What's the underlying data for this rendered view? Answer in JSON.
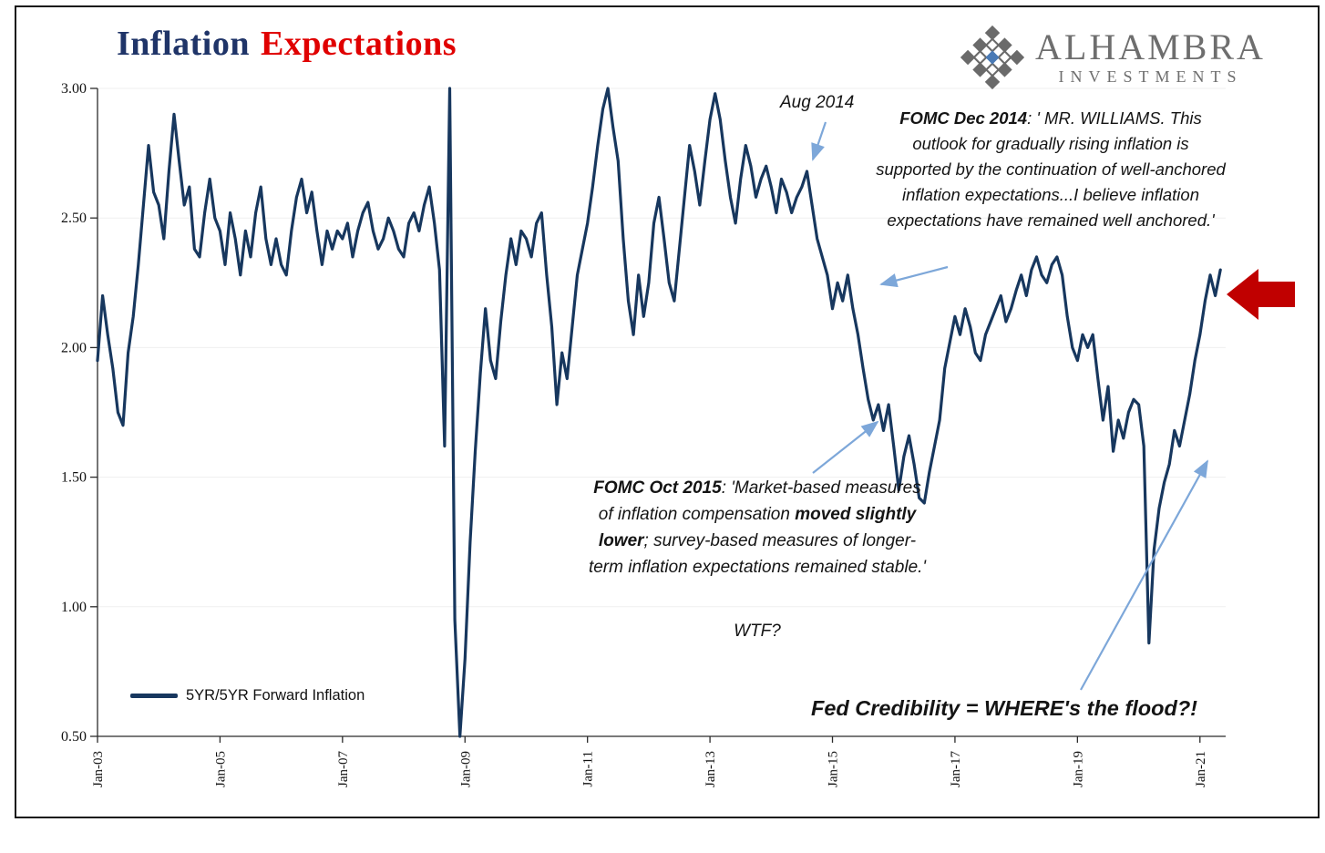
{
  "title": {
    "part1": "Inflation",
    "part2": "Expectations"
  },
  "logo": {
    "name": "ALHAMBRA",
    "subtitle": "INVESTMENTS"
  },
  "legend": {
    "label": "5YR/5YR Forward Inflation"
  },
  "annotations": {
    "aug_2014": {
      "label": "Aug 2014"
    },
    "fomc_dec_2014": {
      "bold": "FOMC Dec 2014",
      "text": ": ' MR. WILLIAMS. This outlook for gradually rising inflation is supported by the continuation of well-anchored inflation expectations...I believe inflation expectations have remained well anchored.'"
    },
    "fomc_oct_2015": {
      "bold": "FOMC Oct 2015",
      "text1": ": 'Market-based measures of inflation compensation ",
      "bold2": "moved slightly lower",
      "text2": "; survey-based measures of longer-term inflation expectations remained stable.'"
    },
    "wtf": {
      "label": "WTF?"
    },
    "fed_credibility": {
      "label": "Fed Credibility = WHERE's the flood?!"
    }
  },
  "colors": {
    "title_navy": "#1f3468",
    "title_red": "#e00000",
    "line_navy": "#17375e",
    "arrow_blue": "#7da7d9",
    "red_arrow": "#c00000",
    "logo_gray": "#6e6e6e",
    "logo_blue": "#4a7ab5"
  },
  "chart_data": {
    "type": "line",
    "title": "Inflation Expectations",
    "xlabel": "",
    "ylabel": "",
    "grid": "light-horizontal",
    "legend_position": "bottom-left",
    "line_color": "#17375e",
    "ylim": [
      0.5,
      3.0
    ],
    "xlim": [
      2003,
      2021.42
    ],
    "yticks": [
      0.5,
      1.0,
      1.5,
      2.0,
      2.5,
      3.0
    ],
    "ytick_labels": [
      "0.50",
      "1.00",
      "1.50",
      "2.00",
      "2.50",
      "3.00"
    ],
    "xtick_years": [
      2003,
      2005,
      2007,
      2009,
      2011,
      2013,
      2015,
      2017,
      2019,
      2021
    ],
    "xtick_labels": [
      "Jan-03",
      "Jan-05",
      "Jan-07",
      "Jan-09",
      "Jan-11",
      "Jan-13",
      "Jan-15",
      "Jan-17",
      "Jan-19",
      "Jan-21"
    ],
    "series": [
      {
        "name": "5YR/5YR Forward Inflation",
        "x_start_year": 2003,
        "x_step_months": 1,
        "values": [
          1.95,
          2.2,
          2.05,
          1.92,
          1.75,
          1.7,
          1.98,
          2.12,
          2.32,
          2.55,
          2.78,
          2.6,
          2.55,
          2.42,
          2.68,
          2.9,
          2.72,
          2.55,
          2.62,
          2.38,
          2.35,
          2.52,
          2.65,
          2.5,
          2.45,
          2.32,
          2.52,
          2.42,
          2.28,
          2.45,
          2.35,
          2.52,
          2.62,
          2.42,
          2.32,
          2.42,
          2.32,
          2.28,
          2.45,
          2.58,
          2.65,
          2.52,
          2.6,
          2.45,
          2.32,
          2.45,
          2.38,
          2.45,
          2.42,
          2.48,
          2.35,
          2.45,
          2.52,
          2.56,
          2.45,
          2.38,
          2.42,
          2.5,
          2.45,
          2.38,
          2.35,
          2.48,
          2.52,
          2.45,
          2.55,
          2.62,
          2.48,
          2.3,
          1.62,
          3.0,
          0.95,
          0.5,
          0.8,
          1.25,
          1.6,
          1.9,
          2.15,
          1.95,
          1.88,
          2.1,
          2.28,
          2.42,
          2.32,
          2.45,
          2.42,
          2.35,
          2.48,
          2.52,
          2.28,
          2.08,
          1.78,
          1.98,
          1.88,
          2.08,
          2.28,
          2.38,
          2.48,
          2.62,
          2.78,
          2.92,
          3.0,
          2.85,
          2.72,
          2.42,
          2.18,
          2.05,
          2.28,
          2.12,
          2.25,
          2.48,
          2.58,
          2.42,
          2.25,
          2.18,
          2.38,
          2.58,
          2.78,
          2.68,
          2.55,
          2.72,
          2.88,
          2.98,
          2.88,
          2.72,
          2.58,
          2.48,
          2.65,
          2.78,
          2.7,
          2.58,
          2.65,
          2.7,
          2.62,
          2.52,
          2.65,
          2.6,
          2.52,
          2.58,
          2.62,
          2.68,
          2.55,
          2.42,
          2.35,
          2.28,
          2.15,
          2.25,
          2.18,
          2.28,
          2.15,
          2.05,
          1.92,
          1.8,
          1.72,
          1.78,
          1.68,
          1.78,
          1.62,
          1.45,
          1.58,
          1.66,
          1.55,
          1.42,
          1.4,
          1.52,
          1.62,
          1.72,
          1.92,
          2.02,
          2.12,
          2.05,
          2.15,
          2.08,
          1.98,
          1.95,
          2.05,
          2.1,
          2.15,
          2.2,
          2.1,
          2.15,
          2.22,
          2.28,
          2.2,
          2.3,
          2.35,
          2.28,
          2.25,
          2.32,
          2.35,
          2.28,
          2.12,
          2.0,
          1.95,
          2.05,
          2.0,
          2.05,
          1.88,
          1.72,
          1.85,
          1.6,
          1.72,
          1.65,
          1.75,
          1.8,
          1.78,
          1.62,
          0.86,
          1.22,
          1.38,
          1.48,
          1.55,
          1.68,
          1.62,
          1.72,
          1.82,
          1.95,
          2.05,
          2.18,
          2.28,
          2.2,
          2.3
        ]
      }
    ]
  }
}
